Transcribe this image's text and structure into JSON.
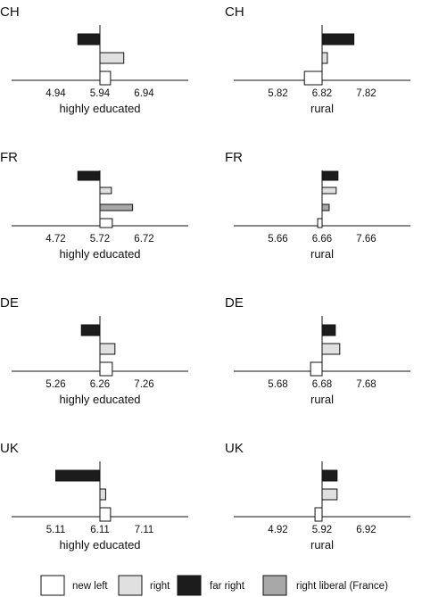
{
  "chart_data": {
    "type": "bar",
    "orientation": "horizontal",
    "categories": [
      "new left",
      "right liberal (France)",
      "right",
      "far right"
    ],
    "series_colors": {
      "new left": "#ffffff",
      "right": "#e0e0e0",
      "far right": "#1c1c1c",
      "right liberal (France)": "#a8a8a8"
    },
    "legend": {
      "position": "bottom",
      "items": [
        {
          "name": "new left",
          "color": "#ffffff"
        },
        {
          "name": "right",
          "color": "#e0e0e0"
        },
        {
          "name": "far right",
          "color": "#1c1c1c"
        },
        {
          "name": "right liberal (France)",
          "color": "#a8a8a8"
        }
      ]
    },
    "panels": [
      {
        "country": "CH",
        "xlabel": "highly educated",
        "center": 5.94,
        "xlim": [
          3.94,
          7.94
        ],
        "ticks": [
          4.94,
          5.94,
          6.94
        ],
        "tick_labels": [
          "4.94",
          "5.94",
          "6.94"
        ],
        "bars": [
          {
            "series": "far right",
            "value": 5.44
          },
          {
            "series": "right",
            "value": 6.48
          },
          {
            "series": "new left",
            "value": 6.18
          }
        ]
      },
      {
        "country": "CH",
        "xlabel": "rural",
        "center": 6.82,
        "xlim": [
          4.82,
          8.82
        ],
        "ticks": [
          5.82,
          6.82,
          7.82
        ],
        "tick_labels": [
          "5.82",
          "6.82",
          "7.82"
        ],
        "bars": [
          {
            "series": "far right",
            "value": 7.54
          },
          {
            "series": "right",
            "value": 6.94
          },
          {
            "series": "new left",
            "value": 6.42
          }
        ]
      },
      {
        "country": "FR",
        "xlabel": "highly educated",
        "center": 5.72,
        "xlim": [
          3.72,
          7.72
        ],
        "ticks": [
          4.72,
          5.72,
          6.72
        ],
        "tick_labels": [
          "4.72",
          "5.72",
          "6.72"
        ],
        "bars": [
          {
            "series": "far right",
            "value": 5.22
          },
          {
            "series": "right",
            "value": 5.98
          },
          {
            "series": "right liberal (France)",
            "value": 6.46
          },
          {
            "series": "new left",
            "value": 6.0
          }
        ]
      },
      {
        "country": "FR",
        "xlabel": "rural",
        "center": 6.66,
        "xlim": [
          4.66,
          8.66
        ],
        "ticks": [
          5.66,
          6.66,
          7.66
        ],
        "tick_labels": [
          "5.66",
          "6.66",
          "7.66"
        ],
        "bars": [
          {
            "series": "far right",
            "value": 7.02
          },
          {
            "series": "right",
            "value": 6.98
          },
          {
            "series": "right liberal (France)",
            "value": 6.82
          },
          {
            "series": "new left",
            "value": 6.56
          }
        ]
      },
      {
        "country": "DE",
        "xlabel": "highly educated",
        "center": 6.26,
        "xlim": [
          4.26,
          8.26
        ],
        "ticks": [
          5.26,
          6.26,
          7.26
        ],
        "tick_labels": [
          "5.26",
          "6.26",
          "7.26"
        ],
        "bars": [
          {
            "series": "far right",
            "value": 5.84
          },
          {
            "series": "right",
            "value": 6.6
          },
          {
            "series": "new left",
            "value": 6.54
          }
        ]
      },
      {
        "country": "DE",
        "xlabel": "rural",
        "center": 6.68,
        "xlim": [
          4.68,
          8.68
        ],
        "ticks": [
          5.68,
          6.68,
          7.68
        ],
        "tick_labels": [
          "5.68",
          "6.68",
          "7.68"
        ],
        "bars": [
          {
            "series": "far right",
            "value": 6.98
          },
          {
            "series": "right",
            "value": 7.08
          },
          {
            "series": "new left",
            "value": 6.42
          }
        ]
      },
      {
        "country": "UK",
        "xlabel": "highly educated",
        "center": 6.11,
        "xlim": [
          4.11,
          8.11
        ],
        "ticks": [
          5.11,
          6.11,
          7.11
        ],
        "tick_labels": [
          "5.11",
          "6.11",
          "7.11"
        ],
        "bars": [
          {
            "series": "far right",
            "value": 5.11
          },
          {
            "series": "right",
            "value": 6.24
          },
          {
            "series": "new left",
            "value": 6.35
          }
        ]
      },
      {
        "country": "UK",
        "xlabel": "rural",
        "center": 5.92,
        "xlim": [
          3.92,
          7.92
        ],
        "ticks": [
          4.92,
          5.92,
          6.92
        ],
        "tick_labels": [
          "4.92",
          "5.92",
          "6.92"
        ],
        "bars": [
          {
            "series": "far right",
            "value": 6.26
          },
          {
            "series": "right",
            "value": 6.26
          },
          {
            "series": "new left",
            "value": 5.76
          }
        ]
      }
    ]
  }
}
